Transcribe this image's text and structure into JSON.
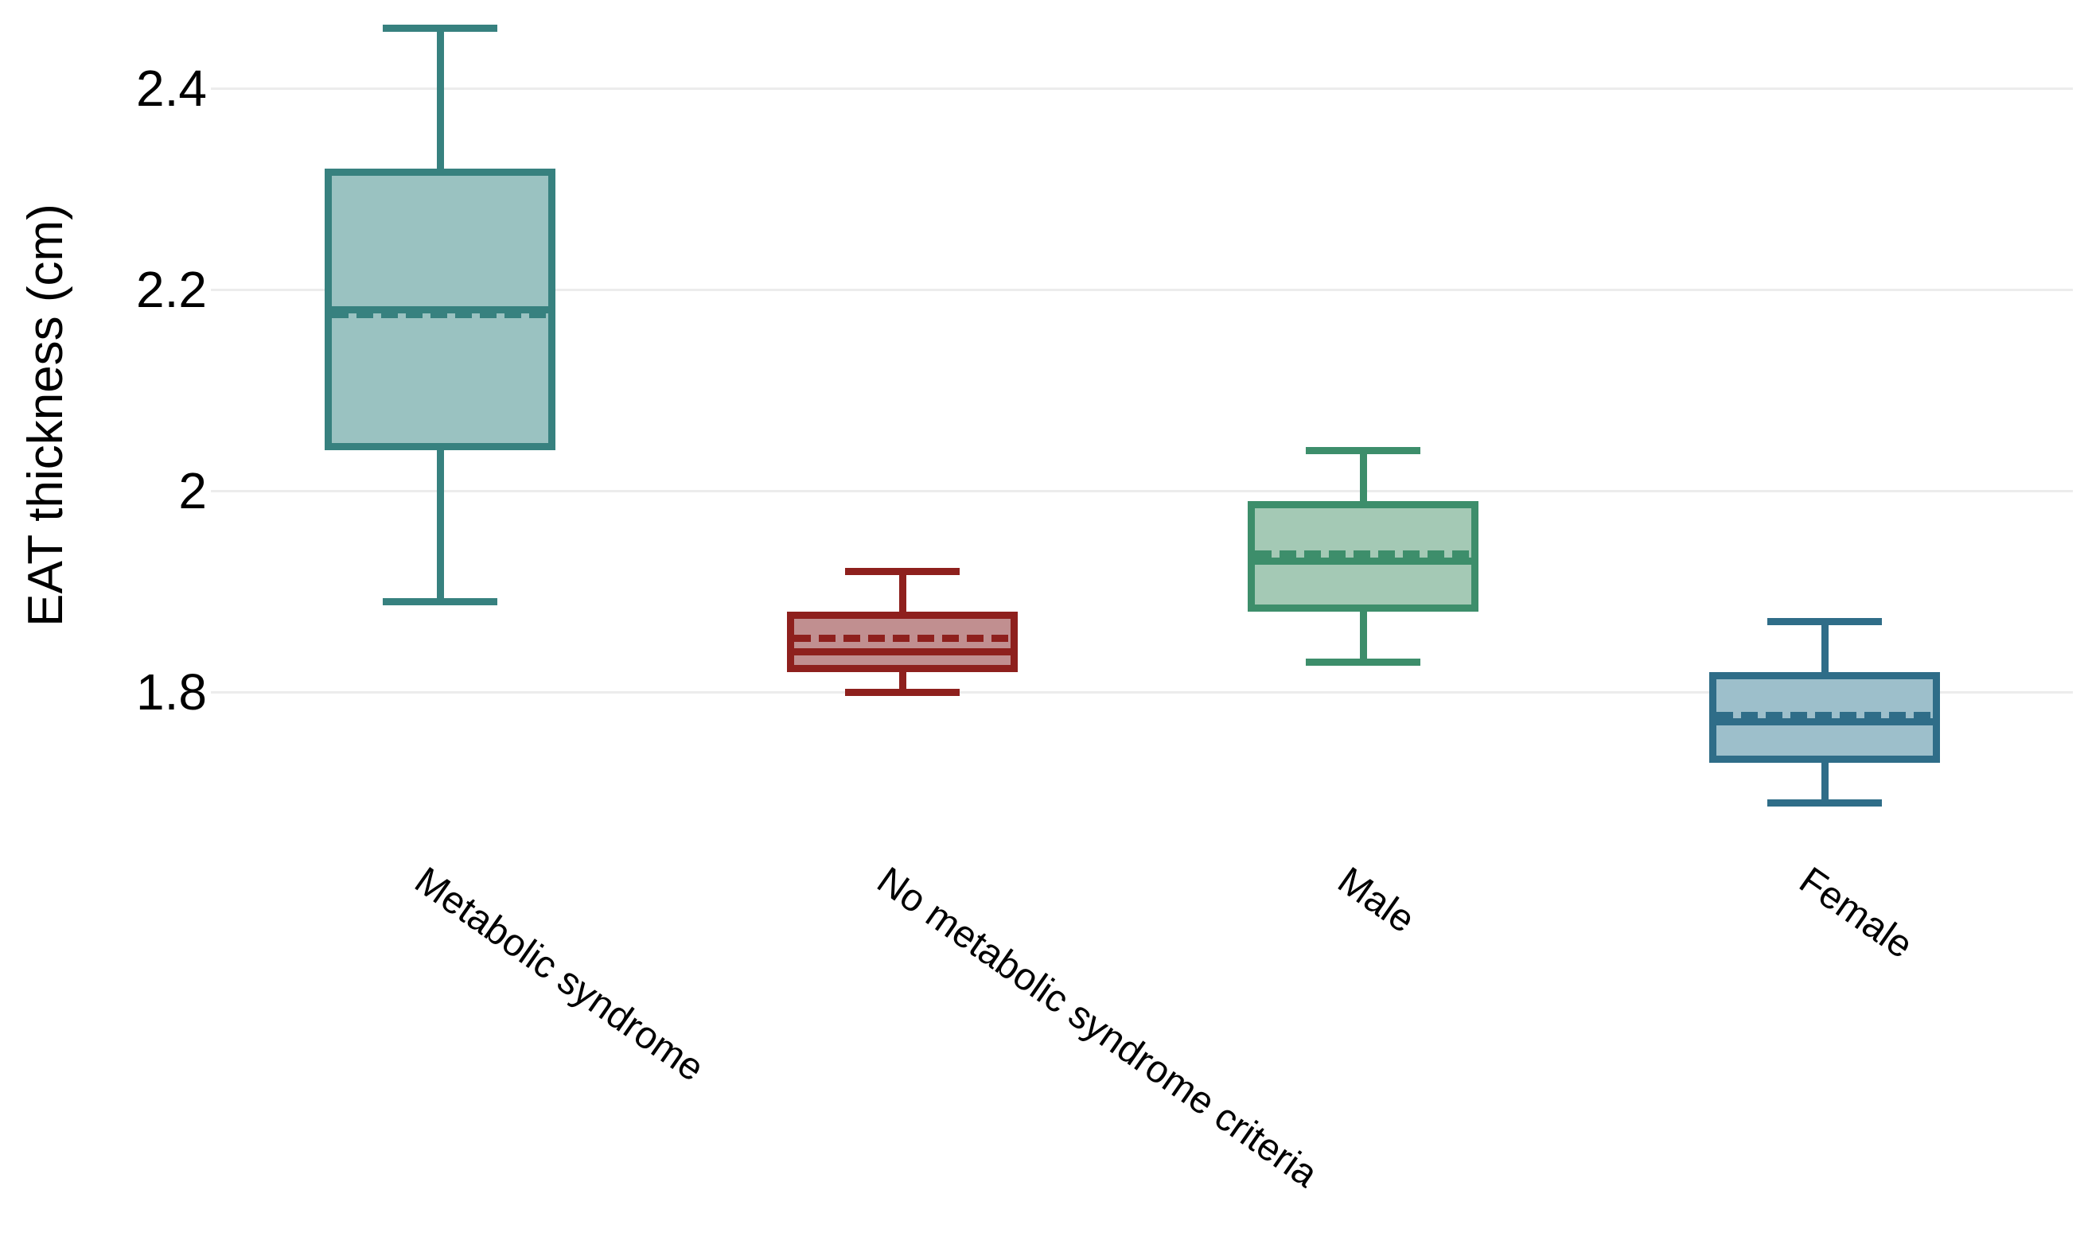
{
  "chart_data": {
    "type": "box",
    "title": "",
    "xlabel": "",
    "ylabel": "EAT thickness (cm)",
    "ylim": [
      1.65,
      2.5
    ],
    "grid": "horizontal",
    "grid_color": "#ececec",
    "background_color": "#ffffff",
    "text_color": "#000000",
    "yticks": [
      {
        "label": "2.4",
        "value": 2.4
      },
      {
        "label": "2.2",
        "value": 2.2
      },
      {
        "label": "2",
        "value": 2.0
      },
      {
        "label": "1.8",
        "value": 1.8
      }
    ],
    "categories": [
      "Metabolic syndrome",
      "No metabolic syndrome criteria",
      "Male",
      "Female"
    ],
    "median_line_style": "solid",
    "mean_line_style": "dashed",
    "series": [
      {
        "name": "Metabolic syndrome",
        "whisker_low": 1.89,
        "q1": 2.04,
        "median": 2.18,
        "mean": 2.175,
        "q3": 2.32,
        "whisker_high": 2.46,
        "stroke": "#37817f",
        "fill": "#9ac2c1"
      },
      {
        "name": "No metabolic syndrome criteria",
        "whisker_low": 1.8,
        "q1": 1.82,
        "median": 1.84,
        "mean": 1.853,
        "q3": 1.88,
        "whisker_high": 1.92,
        "stroke": "#8e201d",
        "fill": "#c18f90"
      },
      {
        "name": "Male",
        "whisker_low": 1.83,
        "q1": 1.88,
        "median": 1.93,
        "mean": 1.937,
        "q3": 1.99,
        "whisker_high": 2.04,
        "stroke": "#3d8e6b",
        "fill": "#a4c9b5"
      },
      {
        "name": "Female",
        "whisker_low": 1.69,
        "q1": 1.73,
        "median": 1.77,
        "mean": 1.777,
        "q3": 1.82,
        "whisker_high": 1.87,
        "stroke": "#2f6d88",
        "fill": "#9dbfcb"
      }
    ]
  }
}
